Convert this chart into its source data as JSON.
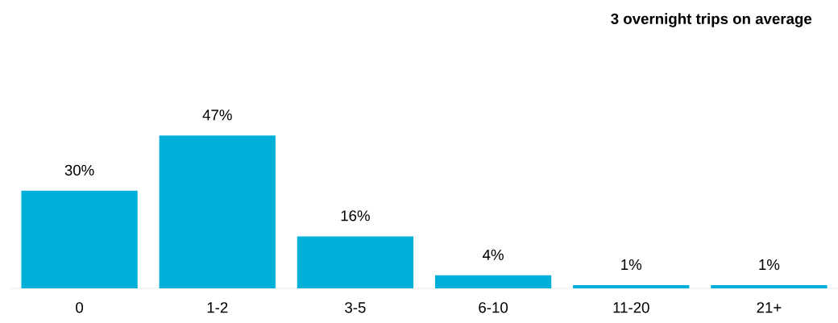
{
  "chart_data": {
    "type": "bar",
    "title": "3 overnight trips on average",
    "categories": [
      "0",
      "1-2",
      "3-5",
      "6-10",
      "11-20",
      "21+"
    ],
    "values": [
      30,
      47,
      16,
      4,
      1,
      1
    ],
    "value_labels": [
      "30%",
      "47%",
      "16%",
      "4%",
      "1%",
      "1%"
    ],
    "color": "#00b0d8"
  }
}
